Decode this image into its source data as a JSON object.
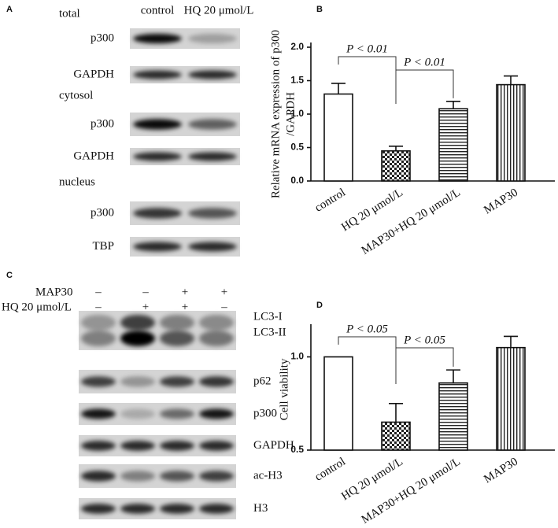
{
  "panel_labels": [
    "A",
    "B",
    "C",
    "D"
  ],
  "panel_a": {
    "columns": [
      "control",
      "HQ 20 μmol/L"
    ],
    "sections": [
      {
        "title": "total",
        "blots": [
          "p300",
          "GAPDH"
        ]
      },
      {
        "title": "cytosol",
        "blots": [
          "p300",
          "GAPDH"
        ]
      },
      {
        "title": "nucleus",
        "blots": [
          "p300",
          "TBP"
        ]
      }
    ]
  },
  "panel_c": {
    "treatments": [
      {
        "name": "MAP30",
        "signs": [
          "–",
          "–",
          "+",
          "+"
        ]
      },
      {
        "name": "HQ 20 μmol/L",
        "signs": [
          "–",
          "+",
          "+",
          "–"
        ]
      }
    ],
    "blots": [
      [
        "LC3-I",
        "LC3-II"
      ],
      [
        "p62"
      ],
      [
        "p300"
      ],
      [
        "GAPDH"
      ],
      [
        "ac-H3"
      ],
      [
        "H3"
      ]
    ]
  },
  "chart_data": [
    {
      "type": "bar",
      "ylabel": [
        "Relative mRNA expression of p300",
        "/GAPDH"
      ],
      "categories": [
        "control",
        "HQ 20 μmol/L",
        "MAP30+HQ 20 μmol/L",
        "MAP30"
      ],
      "values": [
        1.3,
        0.45,
        1.08,
        1.44
      ],
      "errors": [
        0.16,
        0.07,
        0.11,
        0.13
      ],
      "patterns": [
        "none",
        "checker",
        "hlines",
        "vlines"
      ],
      "ylim": [
        0,
        2
      ],
      "yticks": [
        {
          "value": 0,
          "label": "0.0"
        },
        0.5,
        {
          "value": 1,
          "label": "1.0"
        },
        1.5,
        {
          "value": 2,
          "label": "2.0"
        }
      ],
      "annotations": [
        "P < 0.01",
        "P < 0.01"
      ]
    },
    {
      "type": "bar",
      "ylabel": [
        "Cell viability"
      ],
      "categories": [
        "control",
        "HQ 20 μmol/L",
        "MAP30+HQ 20 μmol/L",
        "MAP30"
      ],
      "values": [
        1.0,
        0.65,
        0.86,
        1.05
      ],
      "errors": [
        0,
        0.1,
        0.07,
        0.06
      ],
      "patterns": [
        "none",
        "checker",
        "hlines",
        "vlines"
      ],
      "ylim": [
        0.5,
        1.15
      ],
      "yticks": [
        0.5,
        {
          "value": 1,
          "label": "1.0"
        }
      ],
      "annotations": [
        "P < 0.05",
        "P < 0.05"
      ]
    }
  ]
}
